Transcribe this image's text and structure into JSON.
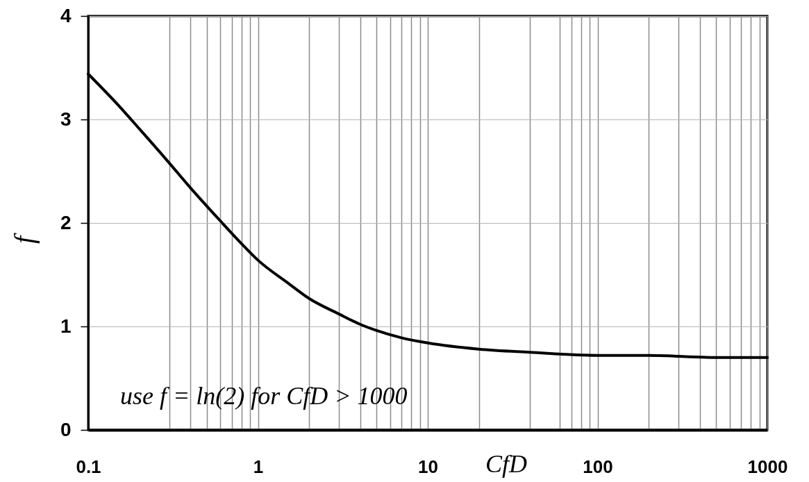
{
  "chart_data": {
    "type": "line",
    "xlabel": "CfD",
    "ylabel": "f",
    "annotations": [
      "use f = ln(2)  for CfD > 1000"
    ],
    "x": [
      0.1,
      0.15,
      0.2,
      0.3,
      0.4,
      0.6,
      0.8,
      1,
      1.5,
      2,
      3,
      4,
      5,
      7,
      10,
      20,
      40,
      100,
      200,
      500,
      1000
    ],
    "series": [
      {
        "color": "#000000",
        "values": [
          3.44,
          3.14,
          2.91,
          2.58,
          2.34,
          2.02,
          1.8,
          1.64,
          1.42,
          1.27,
          1.12,
          1.02,
          0.96,
          0.89,
          0.84,
          0.78,
          0.75,
          0.72,
          0.72,
          0.7,
          0.7
        ]
      }
    ],
    "log": "x",
    "xlim": [
      0.1,
      1000
    ],
    "ylim": [
      0,
      4
    ],
    "yticks": [
      0,
      1,
      2,
      3,
      4
    ],
    "xticks": [
      0.1,
      {
        "value": 0.3,
        "label": null
      },
      {
        "value": 0.4,
        "label": null
      },
      {
        "value": 0.5,
        "label": null
      },
      {
        "value": 0.6,
        "label": null
      },
      {
        "value": 0.7,
        "label": null
      },
      {
        "value": 0.8,
        "label": null
      },
      {
        "value": 0.9,
        "label": null
      },
      1,
      {
        "value": 2,
        "label": null
      },
      {
        "value": 3,
        "label": null
      },
      {
        "value": 4,
        "label": null
      },
      {
        "value": 5,
        "label": null
      },
      {
        "value": 6,
        "label": null
      },
      {
        "value": 7,
        "label": null
      },
      {
        "value": 8,
        "label": null
      },
      {
        "value": 9,
        "label": null
      },
      10,
      {
        "value": 20,
        "label": null
      },
      {
        "value": 40,
        "label": null
      },
      {
        "value": 60,
        "label": null
      },
      {
        "value": 70,
        "label": null
      },
      {
        "value": 80,
        "label": null
      },
      {
        "value": 90,
        "label": null
      },
      100,
      {
        "value": 200,
        "label": null
      },
      {
        "value": 300,
        "label": null
      },
      {
        "value": 400,
        "label": null
      },
      {
        "value": 500,
        "label": null
      },
      {
        "value": 600,
        "label": null
      },
      {
        "value": 700,
        "label": null
      },
      {
        "value": 800,
        "label": null
      },
      {
        "value": 900,
        "label": null
      },
      1000
    ],
    "grid": true
  }
}
